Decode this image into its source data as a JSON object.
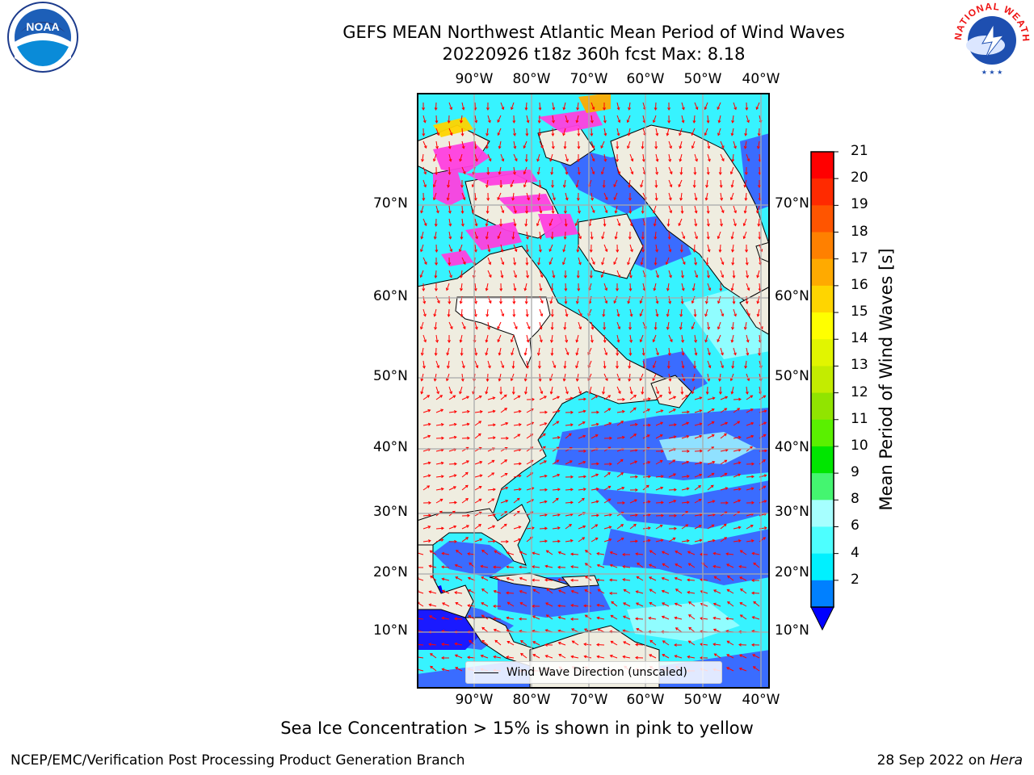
{
  "title": {
    "line1": "GEFS MEAN Northwest Atlantic Mean Period of Wind Waves",
    "line2": "20220926 t18z 360h fcst   Max: 8.18"
  },
  "axes": {
    "lon_labels": [
      "90°W",
      "80°W",
      "70°W",
      "60°W",
      "50°W",
      "40°W"
    ],
    "lat_labels": [
      "70°N",
      "60°N",
      "50°N",
      "40°N",
      "30°N",
      "20°N",
      "10°N"
    ]
  },
  "legend": {
    "label": "Wind Wave Direction (unscaled)"
  },
  "colorbar": {
    "label": "Mean Period of Wind Waves [s]",
    "ticks": [
      "21",
      "20",
      "19",
      "18",
      "17",
      "16",
      "15",
      "14",
      "13",
      "12",
      "11",
      "10",
      "9",
      "8",
      "6",
      "4",
      "2"
    ],
    "colors": [
      "#ff0000",
      "#ff2a00",
      "#ff5500",
      "#ff8000",
      "#ffaa00",
      "#ffd500",
      "#ffff00",
      "#e1f500",
      "#c3ec00",
      "#91e400",
      "#5af000",
      "#00e600",
      "#44f570",
      "#a6ffff",
      "#4dffff",
      "#00f0ff",
      "#0080ff"
    ],
    "under_color": "#0000ff"
  },
  "map_colors": {
    "land": "#efede0",
    "ocean_low": "#3a6cff",
    "ocean_mid": "#37f3ff",
    "ocean_high": "#a6ffff",
    "ice": "#ff40e0",
    "arrows": "#ff0000"
  },
  "logos": {
    "left": "noaa-logo",
    "right": "nws-logo",
    "noaa_text": "NOAA",
    "nws_text": "NATIONAL WEATHER SERVICE"
  },
  "note": "Sea Ice Concentration > 15% is shown in pink to yellow",
  "footer": {
    "left": "NCEP/EMC/Verification Post Processing Product Generation Branch",
    "right_date": "28 Sep 2022 on",
    "right_host": "Hera"
  }
}
